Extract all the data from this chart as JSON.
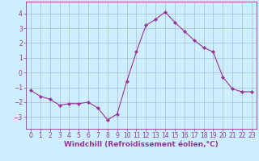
{
  "x": [
    0,
    1,
    2,
    3,
    4,
    5,
    6,
    7,
    8,
    9,
    10,
    11,
    12,
    13,
    14,
    15,
    16,
    17,
    18,
    19,
    20,
    21,
    22,
    23
  ],
  "y": [
    -1.2,
    -1.6,
    -1.8,
    -2.2,
    -2.1,
    -2.1,
    -2.0,
    -2.4,
    -3.2,
    -2.8,
    -0.6,
    1.4,
    3.2,
    3.6,
    4.1,
    3.4,
    2.8,
    2.2,
    1.7,
    1.4,
    -0.3,
    -1.1,
    -1.3,
    -1.3
  ],
  "line_color": "#993399",
  "marker": "D",
  "marker_size": 2.2,
  "bg_color": "#cceeff",
  "grid_color": "#aabbcc",
  "xlabel": "Windchill (Refroidissement éolien,°C)",
  "ylabel": "",
  "title": "",
  "xlim": [
    -0.5,
    23.5
  ],
  "ylim": [
    -3.8,
    4.8
  ],
  "yticks": [
    -3,
    -2,
    -1,
    0,
    1,
    2,
    3,
    4
  ],
  "xticks": [
    0,
    1,
    2,
    3,
    4,
    5,
    6,
    7,
    8,
    9,
    10,
    11,
    12,
    13,
    14,
    15,
    16,
    17,
    18,
    19,
    20,
    21,
    22,
    23
  ],
  "font_color": "#993399",
  "tick_fontsize": 5.5,
  "label_fontsize": 6.5
}
